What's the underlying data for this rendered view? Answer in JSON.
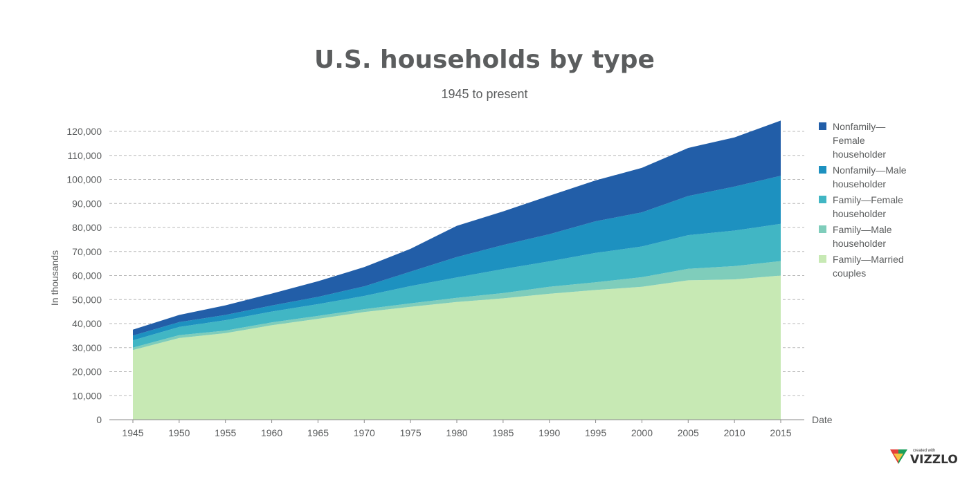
{
  "chart_data": {
    "type": "area",
    "stacked": true,
    "title": "U.S. households by type",
    "subtitle": "1945 to present",
    "xlabel": "Date",
    "ylabel": "In thousands",
    "ylim": [
      0,
      120000
    ],
    "x_ticks": [
      "1945",
      "1950",
      "1955",
      "1960",
      "1965",
      "1970",
      "1975",
      "1980",
      "1985",
      "1990",
      "1995",
      "2000",
      "2005",
      "2010",
      "2015"
    ],
    "y_ticks": [
      "0",
      "10,000",
      "20,000",
      "30,000",
      "40,000",
      "50,000",
      "60,000",
      "70,000",
      "80,000",
      "90,000",
      "100,000",
      "110,000",
      "120,000"
    ],
    "x": [
      1945,
      1950,
      1955,
      1960,
      1965,
      1970,
      1975,
      1980,
      1985,
      1990,
      1995,
      2000,
      2005,
      2010,
      2015
    ],
    "series": [
      {
        "name": "Family—Married couples",
        "legend": [
          "Family—Married",
          "couples"
        ],
        "color": "#c7e9b4",
        "values": [
          29000,
          34000,
          36000,
          39300,
          42000,
          44800,
          47000,
          49000,
          50500,
          52400,
          54000,
          55300,
          58000,
          58400,
          60000
        ]
      },
      {
        "name": "Family—Male householder",
        "legend": [
          "Family—Male",
          "householder"
        ],
        "color": "#7fcdbb",
        "values": [
          1000,
          1200,
          1100,
          1200,
          1200,
          1200,
          1400,
          1700,
          2200,
          2900,
          3200,
          4000,
          4800,
          5500,
          6000
        ]
      },
      {
        "name": "Family—Female householder",
        "legend": [
          "Family—Female",
          "householder"
        ],
        "color": "#41b6c4",
        "values": [
          3000,
          3400,
          4300,
          4500,
          4900,
          5500,
          7200,
          8500,
          10000,
          10600,
          12200,
          12800,
          14000,
          14800,
          15500
        ]
      },
      {
        "name": "Nonfamily—Male householder",
        "legend": [
          "Nonfamily—Male",
          "householder"
        ],
        "color": "#1d91c0",
        "values": [
          2000,
          2000,
          2200,
          2500,
          3000,
          4000,
          6000,
          8500,
          10000,
          11300,
          13200,
          14200,
          16300,
          18300,
          20000
        ]
      },
      {
        "name": "Nonfamily—Female householder",
        "legend": [
          "Nonfamily—",
          "Female",
          "householder"
        ],
        "color": "#225ea8",
        "values": [
          2500,
          3000,
          4000,
          5000,
          6500,
          8000,
          9500,
          13000,
          14000,
          16000,
          17000,
          18500,
          20000,
          20500,
          23000
        ]
      }
    ]
  },
  "branding": {
    "small": "created with",
    "name": "VIZZLO"
  }
}
